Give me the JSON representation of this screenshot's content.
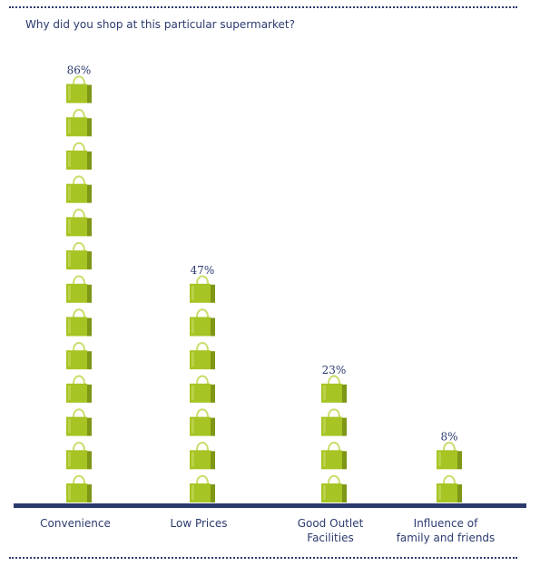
{
  "title": "Why did you shop at this particular supermarket?",
  "colors": {
    "axis": "#2b3a6e",
    "text": "#2b3a6e",
    "bag_front": "#a6c423",
    "bag_side": "#7e9716",
    "bag_handle": "#c9de6a"
  },
  "icon": "shopping-bag-icon",
  "chart_data": {
    "type": "bar",
    "title": "Why did you shop at this particular supermarket?",
    "categories": [
      "Convenience",
      "Low Prices",
      "Good Outlet Facilities",
      "Influence of family and friends"
    ],
    "category_lines": [
      [
        "Convenience"
      ],
      [
        "Low Prices"
      ],
      [
        "Good Outlet",
        "Facilities"
      ],
      [
        "Influence of",
        "family and friends"
      ]
    ],
    "values": [
      86,
      47,
      23,
      8
    ],
    "value_labels": [
      "86%",
      "47%",
      "23%",
      "8%"
    ],
    "bag_counts": [
      13,
      7,
      4,
      2
    ],
    "unit": "%"
  }
}
